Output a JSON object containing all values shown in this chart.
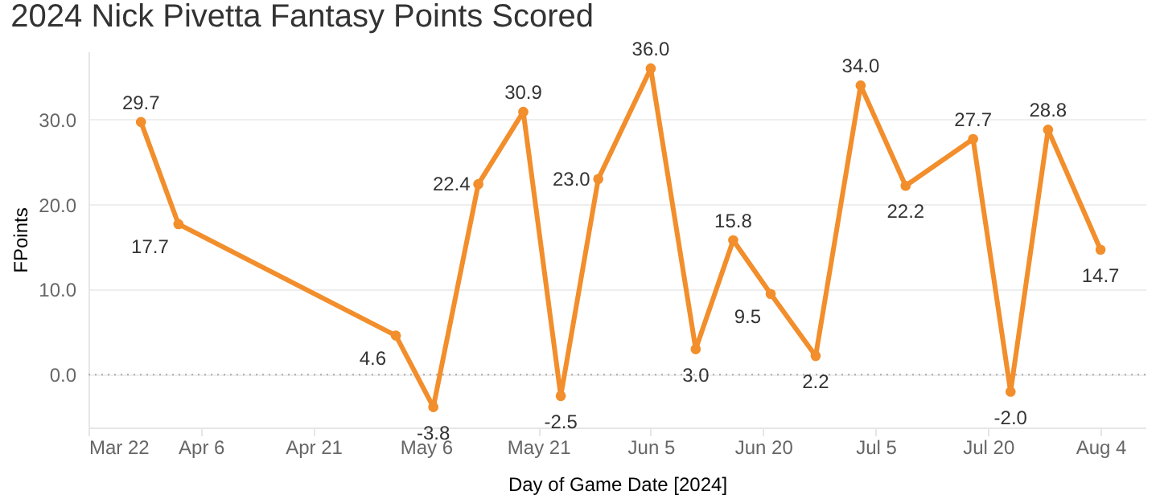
{
  "chart_data": {
    "type": "line",
    "title": "2024 Nick Pivetta Fantasy Points Scored",
    "xlabel": "Day of Game Date [2024]",
    "ylabel": "FPoints",
    "x": [
      "2024-03-29",
      "2024-04-03",
      "2024-05-02",
      "2024-05-07",
      "2024-05-13",
      "2024-05-19",
      "2024-05-24",
      "2024-05-29",
      "2024-06-05",
      "2024-06-11",
      "2024-06-16",
      "2024-06-21",
      "2024-06-27",
      "2024-07-03",
      "2024-07-09",
      "2024-07-18",
      "2024-07-23",
      "2024-07-28",
      "2024-08-04"
    ],
    "series": [
      {
        "color": "#f28e2b",
        "values": [
          29.7,
          17.7,
          4.6,
          -3.8,
          22.4,
          30.9,
          -2.5,
          23.0,
          36.0,
          3.0,
          15.8,
          9.5,
          2.2,
          34.0,
          22.2,
          27.7,
          -2.0,
          28.8,
          14.7
        ],
        "value_labels": [
          "29.7",
          "17.7",
          "4.6",
          "-3.8",
          "22.4",
          "30.9",
          "-2.5",
          "23.0",
          "36.0",
          "3.0",
          "15.8",
          "9.5",
          "2.2",
          "34.0",
          "22.2",
          "27.7",
          "-2.0",
          "28.8",
          "14.7"
        ]
      }
    ],
    "xlim": [
      "2024-03-22",
      "2024-08-10"
    ],
    "xticks": [
      {
        "value": "2024-03-22",
        "label": "Mar 22"
      },
      {
        "value": "2024-04-06",
        "label": "Apr 6"
      },
      {
        "value": "2024-04-21",
        "label": "Apr 21"
      },
      {
        "value": "2024-05-06",
        "label": "May 6"
      },
      {
        "value": "2024-05-21",
        "label": "May 21"
      },
      {
        "value": "2024-06-05",
        "label": "Jun 5"
      },
      {
        "value": "2024-06-20",
        "label": "Jun 20"
      },
      {
        "value": "2024-07-05",
        "label": "Jul 5"
      },
      {
        "value": "2024-07-20",
        "label": "Jul 20"
      },
      {
        "value": "2024-08-04",
        "label": "Aug 4"
      }
    ],
    "ylim": [
      -6.2,
      38
    ],
    "yticks": [
      {
        "value": 0,
        "label": "0.0"
      },
      {
        "value": 10,
        "label": "10.0"
      },
      {
        "value": 20,
        "label": "20.0"
      },
      {
        "value": 30,
        "label": "30.0"
      }
    ],
    "ref_lines": [
      {
        "axis": "y",
        "value": 0,
        "color": "#aaaaaa",
        "line_style": "dotted"
      }
    ],
    "grid": "y",
    "marker": "circle",
    "line_style": "solid"
  }
}
